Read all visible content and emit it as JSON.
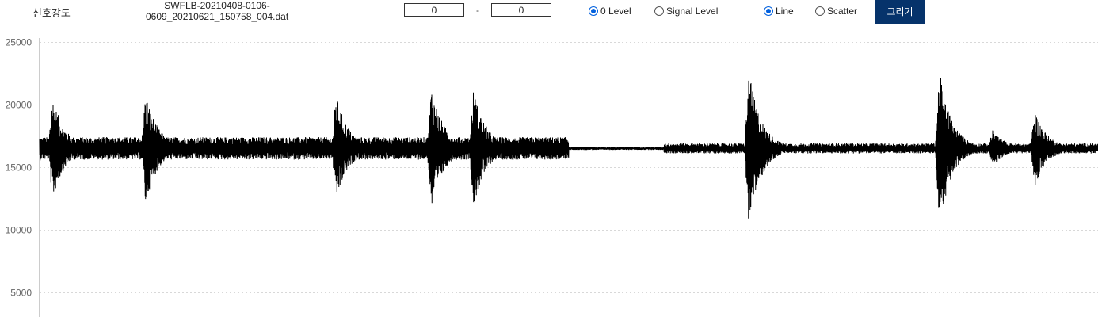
{
  "toolbar": {
    "signal_label": "신호강도",
    "filename_line1": "SWFLB-20210408-0106-",
    "filename_line2": "0609_20210621_150758_004.dat",
    "range_start": "0",
    "range_separator": "-",
    "range_end": "0",
    "level_options": [
      {
        "label": "0 Level",
        "checked": true
      },
      {
        "label": "Signal Level",
        "checked": false
      }
    ],
    "mode_options": [
      {
        "label": "Line",
        "checked": true
      },
      {
        "label": "Scatter",
        "checked": false
      }
    ],
    "draw_label": "그리기"
  },
  "chart_data": {
    "type": "line",
    "title": "",
    "xlabel": "",
    "ylabel": "",
    "yticks": [
      25000,
      20000,
      15000,
      10000,
      5000
    ],
    "ylim_visible": [
      3000,
      25000
    ],
    "grid": "horizontal dashed",
    "series_color": "#000000",
    "baseline": 16500,
    "bursts": [
      {
        "x": 0.0,
        "peak_high": 17600,
        "peak_low": 15600
      },
      {
        "x": 0.012,
        "peak_high": 20500,
        "peak_low": 12000
      },
      {
        "x": 0.1,
        "peak_high": 21200,
        "peak_low": 12100
      },
      {
        "x": 0.28,
        "peak_high": 21100,
        "peak_low": 12300
      },
      {
        "x": 0.37,
        "peak_high": 22100,
        "peak_low": 12000
      },
      {
        "x": 0.41,
        "peak_high": 21200,
        "peak_low": 11500
      },
      {
        "x": 0.67,
        "peak_high": 23300,
        "peak_low": 10800
      },
      {
        "x": 0.85,
        "peak_high": 22800,
        "peak_low": 10200
      },
      {
        "x": 0.9,
        "peak_high": 18200,
        "peak_low": 15000
      },
      {
        "x": 0.94,
        "peak_high": 19200,
        "peak_low": 13000
      }
    ],
    "quiet_segment": [
      0.5,
      0.59
    ]
  }
}
